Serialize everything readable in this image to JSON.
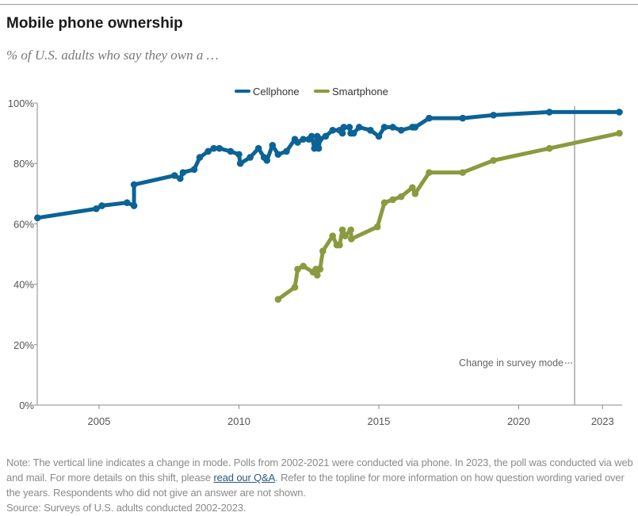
{
  "header": {
    "title": "Mobile phone ownership",
    "subtitle": "% of U.S. adults who say they own a …"
  },
  "chart_data": {
    "type": "line",
    "title": "Mobile phone ownership",
    "subtitle": "% of U.S. adults who say they own a …",
    "xlabel": "",
    "ylabel": "",
    "xlim": [
      2002.79,
      2023.7
    ],
    "ylim": [
      0,
      100
    ],
    "x_ticks": [
      2005,
      2010,
      2015,
      2020,
      2023
    ],
    "x_tick_labels": [
      "2005",
      "2010",
      "2015",
      "2020",
      "2023"
    ],
    "y_ticks": [
      0,
      20,
      40,
      60,
      80,
      100
    ],
    "y_tick_labels": [
      "0%",
      "20%",
      "40%",
      "60%",
      "80%",
      "100%"
    ],
    "grid": false,
    "legend_placement": "top-center",
    "annotation": {
      "label": "Change in survey mode",
      "x": 2022.0
    },
    "series": [
      {
        "name": "Cellphone",
        "color": "#0b6396",
        "x": [
          2002.8,
          2004.9,
          2005.1,
          2006.0,
          2006.25,
          2006.25,
          2007.7,
          2007.9,
          2008.0,
          2008.4,
          2008.6,
          2008.9,
          2009.1,
          2009.3,
          2009.7,
          2010.0,
          2010.05,
          2010.4,
          2010.7,
          2010.9,
          2011.0,
          2011.2,
          2011.4,
          2011.7,
          2012.0,
          2012.1,
          2012.3,
          2012.5,
          2012.6,
          2012.7,
          2012.8,
          2012.85,
          2012.9,
          2013.1,
          2013.35,
          2013.6,
          2013.7,
          2013.75,
          2013.95,
          2014.0,
          2014.1,
          2014.3,
          2014.7,
          2015.0,
          2015.2,
          2015.5,
          2015.8,
          2016.2,
          2016.3,
          2016.8,
          2018.0,
          2019.1,
          2021.1,
          2023.6
        ],
        "y": [
          62,
          65,
          66,
          67,
          66,
          73,
          76,
          75,
          77,
          78,
          82,
          84,
          85,
          85,
          84,
          83,
          80,
          82,
          85,
          82,
          81,
          86,
          83,
          84,
          88,
          87,
          88,
          88,
          89,
          85,
          89,
          85,
          88,
          89,
          91,
          91,
          90,
          92,
          92,
          90,
          90,
          92,
          91,
          89,
          92,
          92,
          91,
          92,
          92,
          95,
          95,
          96,
          97,
          97
        ]
      },
      {
        "name": "Smartphone",
        "color": "#8a9b3f",
        "x": [
          2011.4,
          2012.0,
          2012.1,
          2012.3,
          2012.65,
          2012.75,
          2012.8,
          2012.85,
          2012.9,
          2013.0,
          2013.35,
          2013.5,
          2013.6,
          2013.7,
          2013.8,
          2014.0,
          2014.02,
          2014.95,
          2015.2,
          2015.5,
          2015.8,
          2016.2,
          2016.3,
          2016.8,
          2018.0,
          2019.1,
          2021.1,
          2023.6
        ],
        "y": [
          35,
          39,
          45,
          46,
          44,
          45,
          43,
          45,
          45,
          51,
          56,
          53,
          53,
          58,
          56,
          58,
          55,
          59,
          67,
          68,
          69,
          72,
          70,
          77,
          77,
          81,
          85,
          90
        ]
      }
    ]
  },
  "footer": {
    "note_before": "Note: The vertical line indicates a change in mode. Polls from 2002-2021 were conducted via phone. In 2023, the poll was conducted via web and mail. For more details on this shift, please ",
    "note_link": "read our Q&A",
    "note_after": ". Refer to the topline for more information on how question wording varied over the years. Respondents who did not give an answer are not shown.",
    "source": "Source: Surveys of U.S. adults conducted 2002-2023."
  }
}
